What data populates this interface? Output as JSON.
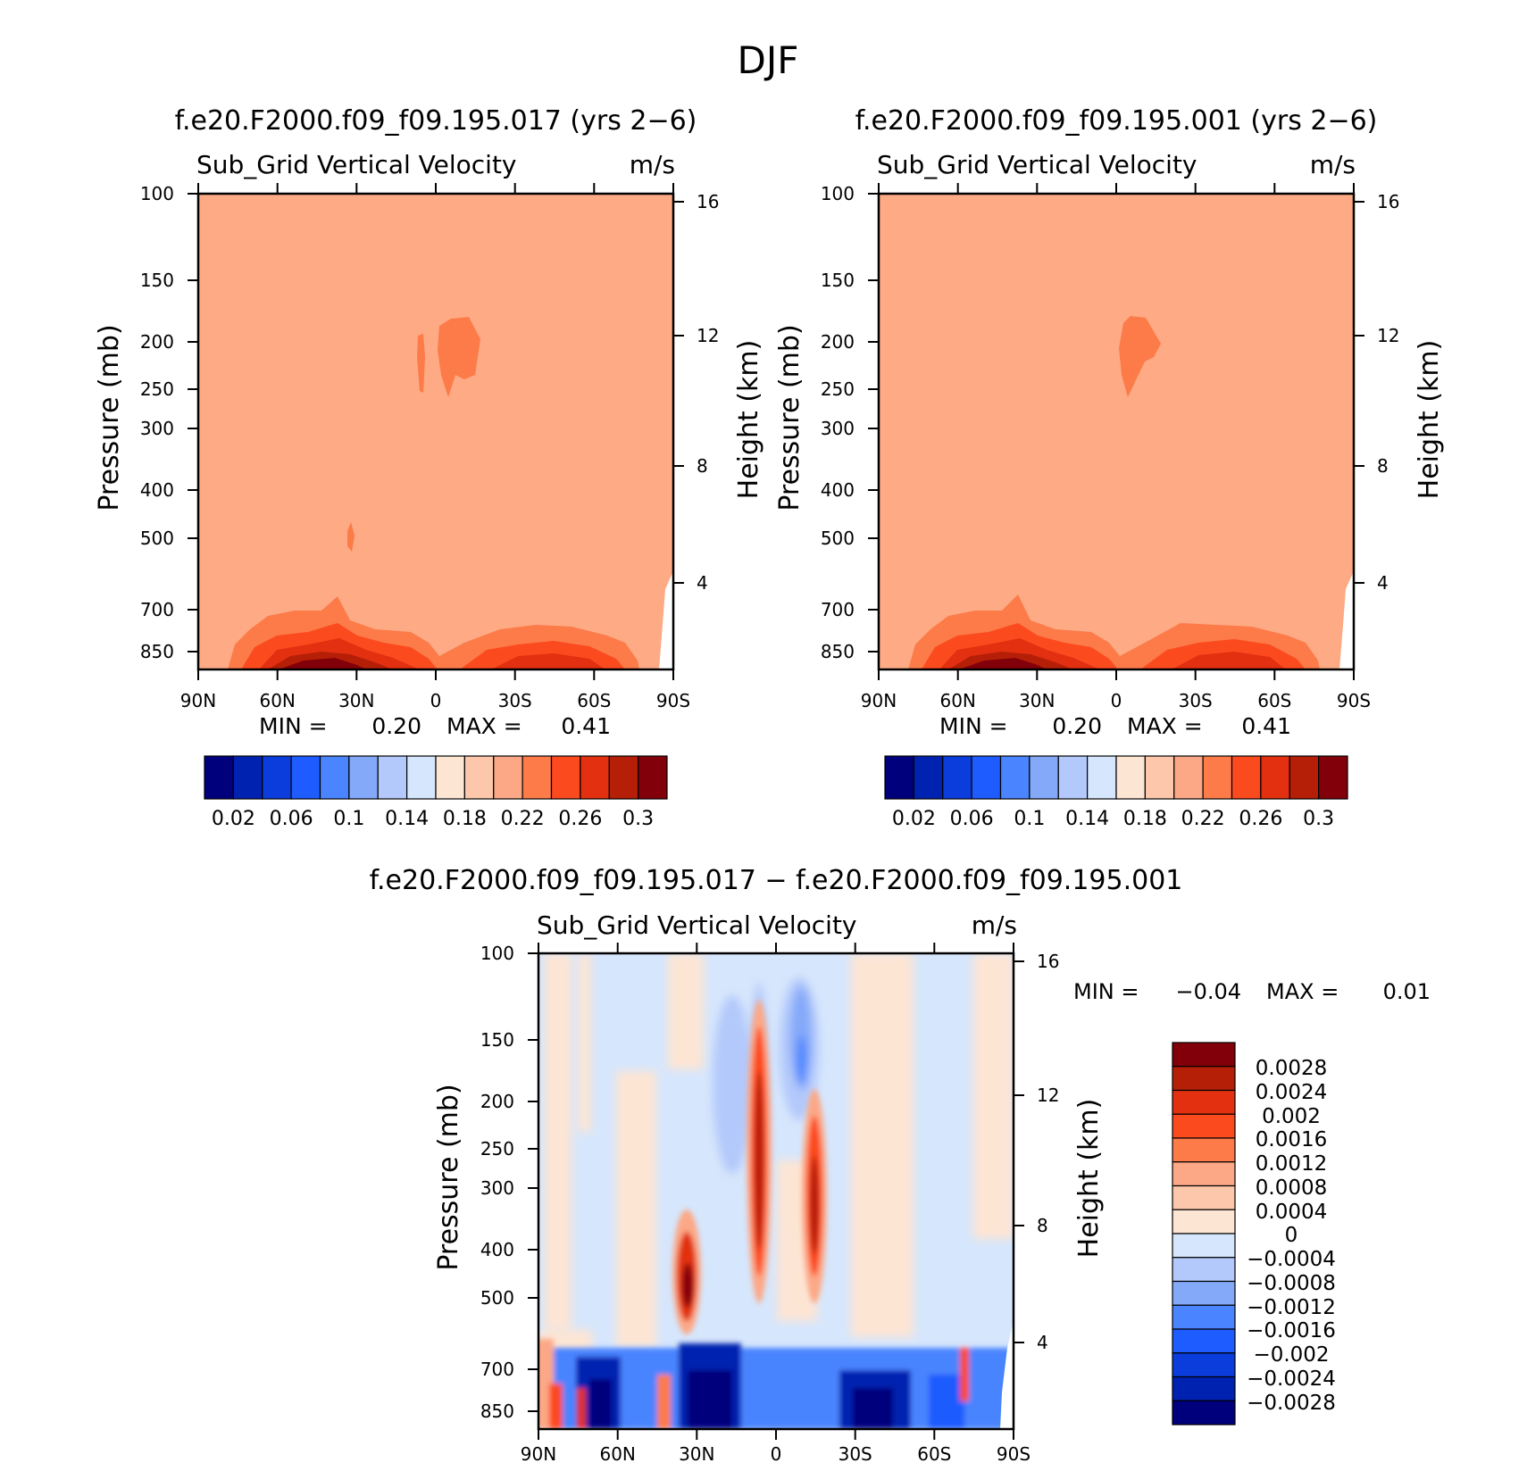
{
  "page_title": "DJF",
  "colors": {
    "background_field": "#fdaa85",
    "top_scale": [
      "#00007d",
      "#0022b0",
      "#0a3ddc",
      "#1f5cff",
      "#4a84ff",
      "#84a9f9",
      "#b3c9fb",
      "#d6e6fc",
      "#fde5d4",
      "#fdc7ab",
      "#fca886",
      "#fc7b49",
      "#fc4a1f",
      "#e23010",
      "#b61f07",
      "#82000a"
    ],
    "diff_scale": [
      "#00007d",
      "#0022b0",
      "#0a3ddc",
      "#1f5cff",
      "#4a84ff",
      "#84a9f9",
      "#b3c9fb",
      "#d6e6fc",
      "#fde5d4",
      "#fdc7ab",
      "#fca886",
      "#fc7b49",
      "#fc4a1f",
      "#e23010",
      "#b61f07",
      "#82000a"
    ]
  },
  "chart_data": [
    {
      "type": "heatmap",
      "title": "f.e20.F2000.f09_f09.195.017 (yrs 2−6)",
      "variable": "Sub_Grid Vertical Velocity",
      "units": "m/s",
      "ylabel": "Pressure (mb)",
      "y2label": "Height (km)",
      "x_ticks": [
        "90N",
        "60N",
        "30N",
        "0",
        "30S",
        "60S",
        "90S"
      ],
      "y_ticks": [
        100,
        150,
        200,
        250,
        300,
        400,
        500,
        700,
        850
      ],
      "y2_ticks": [
        16,
        12,
        8,
        4
      ],
      "xlim": [
        90,
        -90
      ],
      "ylim": [
        1000,
        100
      ],
      "y_scale": "log",
      "stats": {
        "min_label": "MIN =",
        "min": "0.20",
        "max_label": "MAX =",
        "max": "0.41"
      },
      "colorbar_labels": [
        "0.02",
        "0.06",
        "0.1",
        "0.14",
        "0.18",
        "0.22",
        "0.26",
        "0.3"
      ],
      "colorbar_levels": [
        0.02,
        0.04,
        0.06,
        0.08,
        0.1,
        0.12,
        0.14,
        0.16,
        0.18,
        0.2,
        0.22,
        0.24,
        0.26,
        0.28,
        0.3
      ],
      "background_value": 0.23,
      "near_surface_max": 0.41
    },
    {
      "type": "heatmap",
      "title": "f.e20.F2000.f09_f09.195.001 (yrs 2−6)",
      "variable": "Sub_Grid Vertical Velocity",
      "units": "m/s",
      "ylabel": "Pressure (mb)",
      "y2label": "Height (km)",
      "x_ticks": [
        "90N",
        "60N",
        "30N",
        "0",
        "30S",
        "60S",
        "90S"
      ],
      "y_ticks": [
        100,
        150,
        200,
        250,
        300,
        400,
        500,
        700,
        850
      ],
      "y2_ticks": [
        16,
        12,
        8,
        4
      ],
      "xlim": [
        90,
        -90
      ],
      "ylim": [
        1000,
        100
      ],
      "y_scale": "log",
      "stats": {
        "min_label": "MIN =",
        "min": "0.20",
        "max_label": "MAX =",
        "max": "0.41"
      },
      "colorbar_labels": [
        "0.02",
        "0.06",
        "0.1",
        "0.14",
        "0.18",
        "0.22",
        "0.26",
        "0.3"
      ],
      "colorbar_levels": [
        0.02,
        0.04,
        0.06,
        0.08,
        0.1,
        0.12,
        0.14,
        0.16,
        0.18,
        0.2,
        0.22,
        0.24,
        0.26,
        0.28,
        0.3
      ],
      "background_value": 0.23,
      "near_surface_max": 0.41
    },
    {
      "type": "heatmap",
      "title": "f.e20.F2000.f09_f09.195.017 − f.e20.F2000.f09_f09.195.001",
      "variable": "Sub_Grid Vertical Velocity",
      "units": "m/s",
      "ylabel": "Pressure (mb)",
      "y2label": "Height (km)",
      "x_ticks": [
        "90N",
        "60N",
        "30N",
        "0",
        "30S",
        "60S",
        "90S"
      ],
      "y_ticks": [
        100,
        150,
        200,
        250,
        300,
        400,
        500,
        700,
        850
      ],
      "y2_ticks": [
        16,
        12,
        8,
        4
      ],
      "xlim": [
        90,
        -90
      ],
      "ylim": [
        1000,
        100
      ],
      "y_scale": "log",
      "stats": {
        "min_label": "MIN =",
        "min": "−0.04",
        "max_label": "MAX =",
        "max": "0.01"
      },
      "colorbar_labels": [
        "0.0028",
        "0.0024",
        "0.002",
        "0.0016",
        "0.0012",
        "0.0008",
        "0.0004",
        "0",
        "−0.0004",
        "−0.0008",
        "−0.0012",
        "−0.0016",
        "−0.002",
        "−0.0024",
        "−0.0028"
      ],
      "colorbar_levels": [
        0.0028,
        0.0024,
        0.002,
        0.0016,
        0.0012,
        0.0008,
        0.0004,
        0,
        -0.0004,
        -0.0008,
        -0.0012,
        -0.0016,
        -0.002,
        -0.0024,
        -0.0028
      ]
    }
  ]
}
